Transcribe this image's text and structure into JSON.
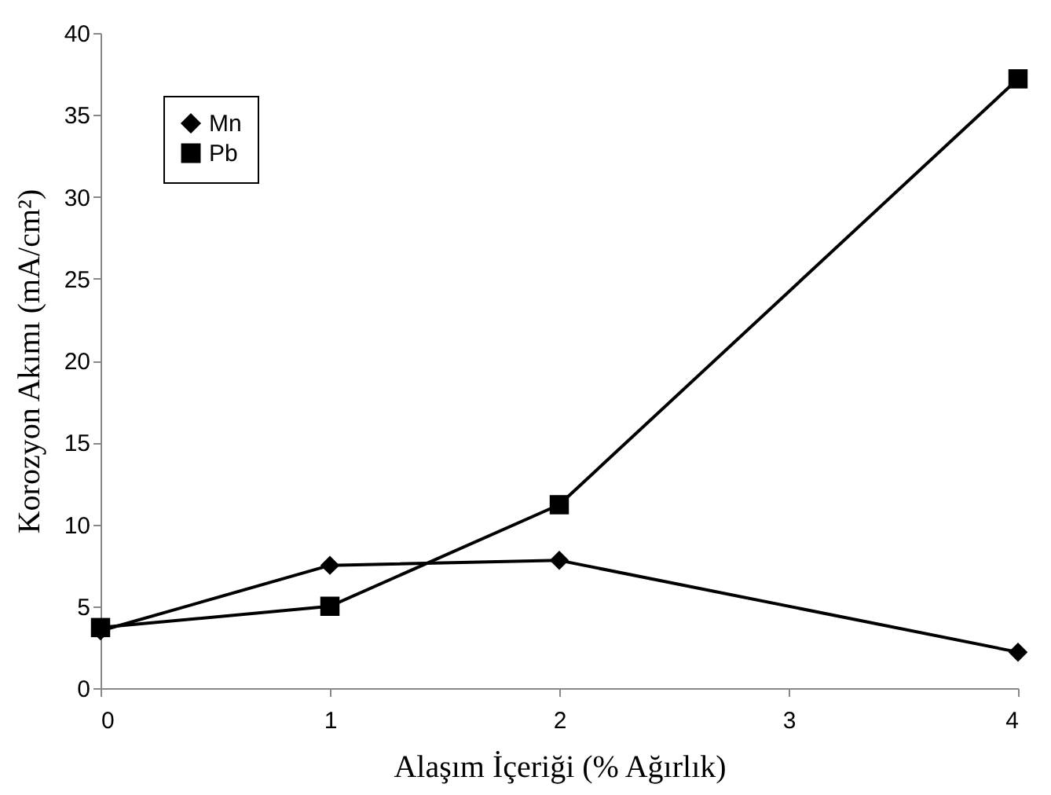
{
  "chart_data": {
    "type": "line",
    "xlabel": "Alaşım İçeriği (% Ağırlık)",
    "ylabel": "Korozyon Akımı (mA/cm²)",
    "x": [
      0,
      1,
      2,
      4
    ],
    "xlim": [
      0,
      4
    ],
    "xticks": [
      0,
      1,
      2,
      3,
      4
    ],
    "ylim": [
      0,
      40
    ],
    "yticks": [
      0,
      5,
      10,
      15,
      20,
      25,
      30,
      35,
      40
    ],
    "grid": false,
    "legend": "top left",
    "series": [
      {
        "name": "Mn",
        "color": "#000000",
        "marker": "diamond",
        "values": [
          3.5,
          7.5,
          7.8,
          2.2
        ]
      },
      {
        "name": "Pb",
        "color": "#000000",
        "marker": "square",
        "values": [
          3.7,
          5.0,
          11.2,
          37.2
        ]
      }
    ]
  }
}
